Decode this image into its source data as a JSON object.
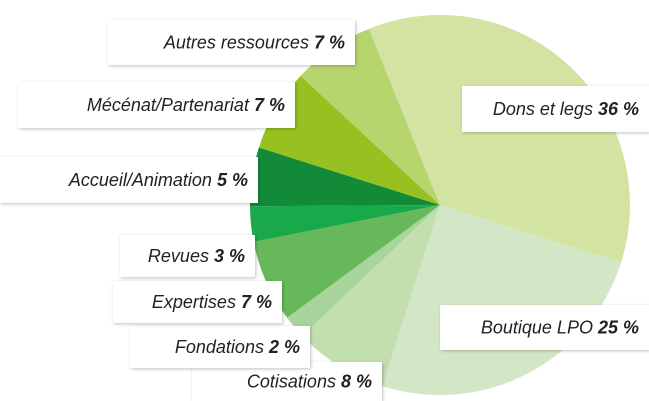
{
  "chart_data": {
    "type": "pie",
    "categories": [
      "Dons et legs",
      "Boutique LPO",
      "Cotisations",
      "Fondations",
      "Expertises",
      "Revues",
      "Accueil/Animation",
      "Mécénat/Partenariat",
      "Autres ressources"
    ],
    "values": [
      36,
      25,
      8,
      2,
      7,
      3,
      5,
      7,
      7
    ],
    "value_labels": [
      "36 %",
      "25 %",
      "8 %",
      "2 %",
      "7 %",
      "3 %",
      "5 %",
      "7 %",
      "7 %"
    ],
    "colors": [
      "#d3e3a2",
      "#d3e7c6",
      "#c3dfb0",
      "#a9d49b",
      "#67b85a",
      "#1aa94a",
      "#138a37",
      "#97c120",
      "#b7d56d"
    ]
  }
}
